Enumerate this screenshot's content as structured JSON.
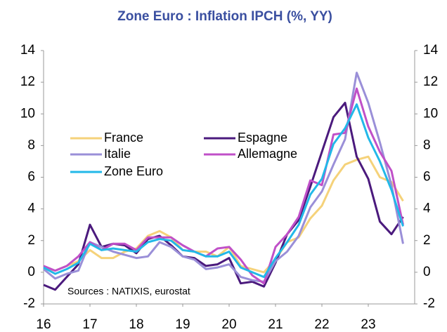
{
  "chart_data": {
    "type": "line",
    "title": "Zone Euro : Inflation IPCH (%, YY)",
    "annotation": "Sources : NATIXIS, eurostat",
    "x": [
      16,
      16.25,
      16.5,
      16.75,
      17,
      17.25,
      17.5,
      17.75,
      18,
      18.25,
      18.5,
      18.75,
      19,
      19.25,
      19.5,
      19.75,
      20,
      20.25,
      20.5,
      20.75,
      21,
      21.25,
      21.5,
      21.75,
      22,
      22.25,
      22.5,
      22.75,
      23,
      23.25,
      23.5,
      23.75
    ],
    "series": [
      {
        "name": "France",
        "color": "#f5d27a",
        "values": [
          0.3,
          0.1,
          0.4,
          0.7,
          1.4,
          0.9,
          0.9,
          1.3,
          1.5,
          2.3,
          2.6,
          2.2,
          1.4,
          1.3,
          1.3,
          1.0,
          1.6,
          0.4,
          0.2,
          0.0,
          0.8,
          1.9,
          2.2,
          3.4,
          4.2,
          5.8,
          6.8,
          7.1,
          7.3,
          6.0,
          5.7,
          4.5
        ]
      },
      {
        "name": "Espagne",
        "color": "#4b1a7d",
        "values": [
          -0.8,
          -1.1,
          -0.3,
          0.5,
          3.0,
          1.6,
          1.8,
          1.7,
          1.2,
          2.1,
          2.3,
          1.7,
          1.0,
          0.9,
          0.4,
          0.5,
          0.9,
          -0.7,
          -0.6,
          -0.9,
          0.6,
          2.4,
          3.3,
          5.4,
          7.6,
          9.8,
          10.7,
          7.3,
          5.9,
          3.2,
          2.4,
          3.5
        ]
      },
      {
        "name": "Italie",
        "color": "#9a8fd8",
        "values": [
          0.2,
          -0.4,
          -0.1,
          0.1,
          1.9,
          1.6,
          1.3,
          1.1,
          0.9,
          1.0,
          1.9,
          1.6,
          1.0,
          0.8,
          0.2,
          0.3,
          0.5,
          -0.3,
          -0.5,
          -0.6,
          0.7,
          1.3,
          2.3,
          4.1,
          5.1,
          6.8,
          8.4,
          12.6,
          10.7,
          8.2,
          5.5,
          1.8
        ]
      },
      {
        "name": "Allemagne",
        "color": "#c050c8",
        "values": [
          0.4,
          0.1,
          0.4,
          1.0,
          1.9,
          1.4,
          1.8,
          1.8,
          1.4,
          2.2,
          2.2,
          2.2,
          1.7,
          1.3,
          1.0,
          1.5,
          1.6,
          0.8,
          -0.2,
          -0.7,
          1.6,
          2.4,
          3.5,
          5.8,
          5.5,
          8.7,
          8.8,
          11.6,
          9.2,
          7.6,
          6.4,
          3.0
        ]
      },
      {
        "name": "Zone Euro",
        "color": "#22b8e8",
        "values": [
          0.3,
          -0.1,
          0.2,
          0.6,
          1.8,
          1.4,
          1.5,
          1.4,
          1.3,
          1.9,
          2.1,
          2.0,
          1.4,
          1.3,
          1.0,
          1.0,
          1.3,
          0.3,
          0.0,
          -0.3,
          0.9,
          1.9,
          3.0,
          4.9,
          5.9,
          8.1,
          9.1,
          10.6,
          8.5,
          7.0,
          5.2,
          2.9
        ]
      }
    ],
    "xlim": [
      16,
      24
    ],
    "xticks": [
      16,
      17,
      18,
      19,
      20,
      21,
      22,
      23
    ],
    "ylim": [
      -2,
      14
    ],
    "yticks": [
      -2,
      0,
      2,
      4,
      6,
      8,
      10,
      12,
      14
    ],
    "y2lim": [
      -2,
      14
    ],
    "y2ticks": [
      -2,
      0,
      2,
      4,
      6,
      8,
      10,
      12,
      14
    ]
  }
}
